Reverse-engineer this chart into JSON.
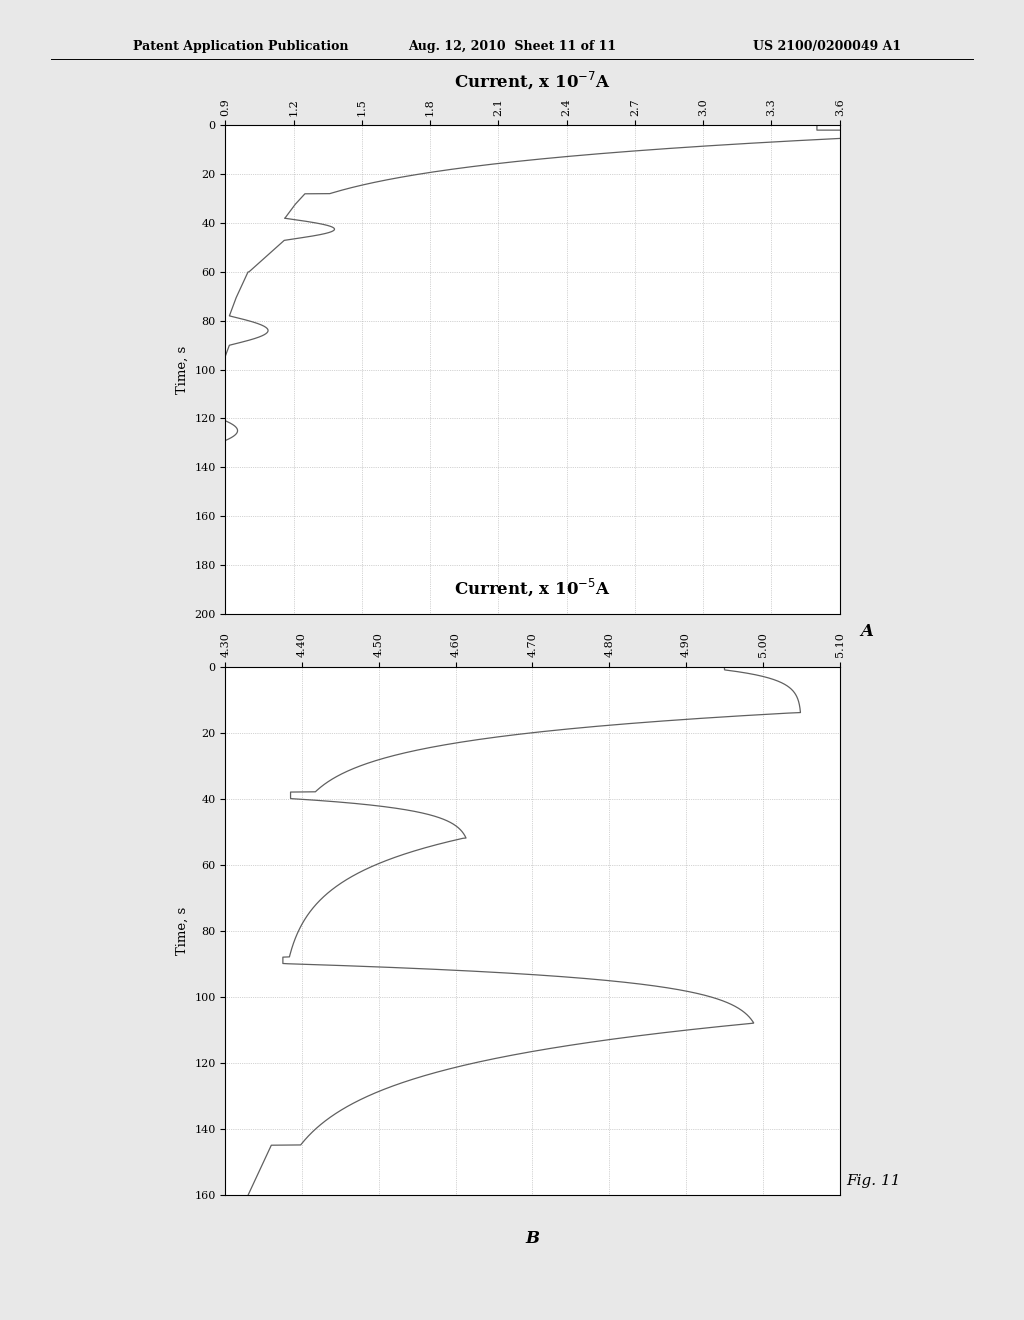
{
  "header_text": "Patent Application Publication    Aug. 12, 2010  Sheet 11 of 11    US 2100/0200049 A1",
  "header_left": "Patent Application Publication",
  "header_mid": "Aug. 12, 2010  Sheet 11 of 11",
  "header_right": "US 2100/0200049 A1",
  "fig_label": "Fig. 11",
  "plot_A": {
    "title": "Current, x 10$^{-7}$A",
    "time_ylabel": "Time, s",
    "time_min": 0,
    "time_max": 200,
    "time_ticks": [
      0,
      20,
      40,
      60,
      80,
      100,
      120,
      140,
      160,
      180,
      200
    ],
    "current_ticks": [
      0.9,
      1.2,
      1.5,
      1.8,
      2.1,
      2.4,
      2.7,
      3.0,
      3.3,
      3.6
    ],
    "current_min": 0.9,
    "current_max": 3.6,
    "label": "A"
  },
  "plot_B": {
    "title": "Current, x 10$^{-5}$A",
    "time_ylabel": "Time, s",
    "time_min": 0,
    "time_max": 160,
    "time_ticks": [
      0,
      20,
      40,
      60,
      80,
      100,
      120,
      140,
      160
    ],
    "current_ticks": [
      4.3,
      4.4,
      4.5,
      4.6,
      4.7,
      4.8,
      4.9,
      5.0,
      5.1
    ],
    "current_min": 4.3,
    "current_max": 5.1,
    "label": "B"
  },
  "page_bg": "#e8e8e8",
  "plot_bg": "#ffffff",
  "line_color": "#606060",
  "grid_color": "#aaaaaa",
  "text_color": "#000000"
}
